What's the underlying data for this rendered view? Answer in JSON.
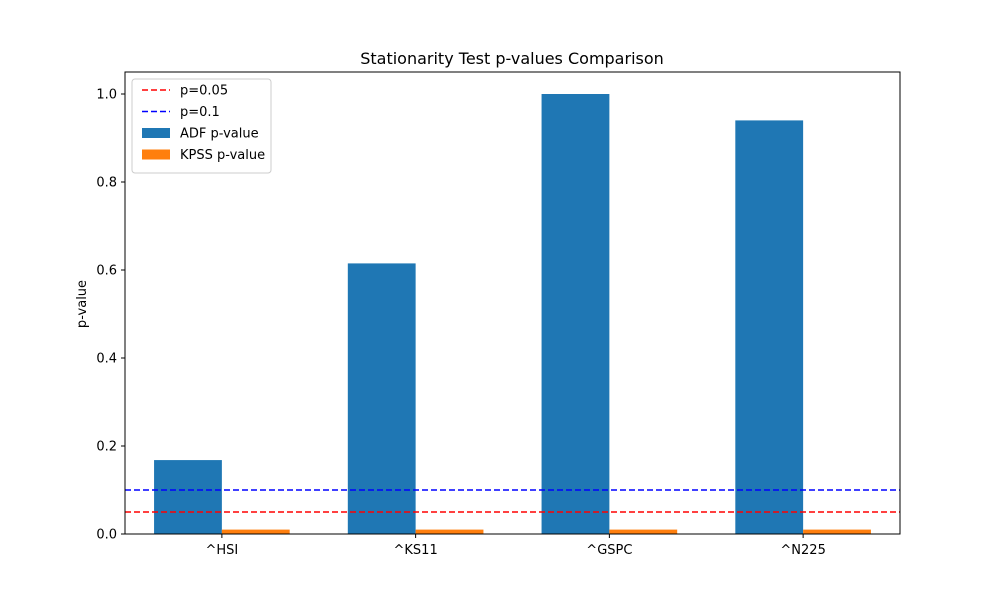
{
  "chart_data": {
    "type": "bar",
    "title": "Stationarity Test p-values Comparison",
    "xlabel": "",
    "ylabel": "p-value",
    "categories": [
      "^HSI",
      "^KS11",
      "^GSPC",
      "^N225"
    ],
    "series": [
      {
        "name": "ADF p-value",
        "color": "#1f77b4",
        "values": [
          0.168,
          0.615,
          1.0,
          0.94
        ]
      },
      {
        "name": "KPSS p-value",
        "color": "#ff7f0e",
        "values": [
          0.01,
          0.01,
          0.01,
          0.01
        ]
      }
    ],
    "reference_lines": [
      {
        "name": "p=0.05",
        "value": 0.05,
        "color": "#ff0000",
        "style": "dashed"
      },
      {
        "name": "p=0.1",
        "value": 0.1,
        "color": "#0000ff",
        "style": "dashed"
      }
    ],
    "ylim": [
      0,
      1.05
    ],
    "yticks": [
      0.0,
      0.2,
      0.4,
      0.6,
      0.8,
      1.0
    ],
    "ytick_labels": [
      "0.0",
      "0.2",
      "0.4",
      "0.6",
      "0.8",
      "1.0"
    ],
    "legend_position": "top-left",
    "grid": false
  }
}
